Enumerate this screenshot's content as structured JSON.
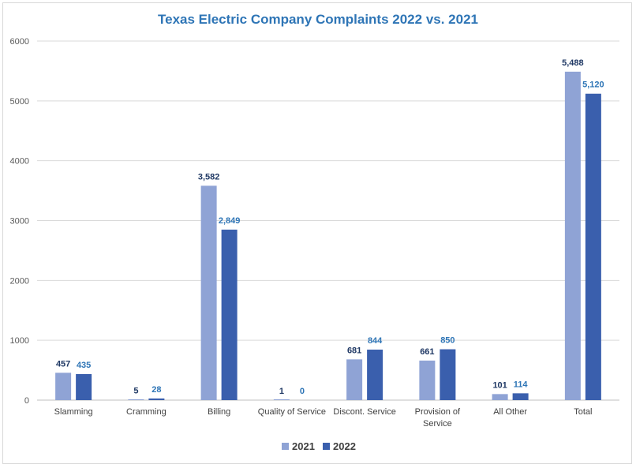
{
  "chart_data": {
    "type": "bar",
    "title": "Texas Electric Company Complaints 2022 vs. 2021",
    "xlabel": "",
    "ylabel": "",
    "ylim": [
      0,
      6000
    ],
    "yticks": [
      0,
      1000,
      2000,
      3000,
      4000,
      5000,
      6000
    ],
    "grid": true,
    "legend_position": "bottom",
    "categories": [
      [
        "Slamming"
      ],
      [
        "Cramming"
      ],
      [
        "Billing"
      ],
      [
        "Quality of Service"
      ],
      [
        "Discont. Service"
      ],
      [
        "Provision of",
        "Service"
      ],
      [
        "All Other"
      ],
      [
        "Total"
      ]
    ],
    "series": [
      {
        "name": "2021",
        "color": "#8fa3d5",
        "label_color": "#1f3864",
        "values": [
          457,
          5,
          3582,
          1,
          681,
          661,
          101,
          5488
        ],
        "labels": [
          "457",
          "5",
          "3,582",
          "1",
          "681",
          "661",
          "101",
          "5,488"
        ]
      },
      {
        "name": "2022",
        "color": "#3a5fad",
        "label_color": "#2e75b6",
        "values": [
          435,
          28,
          2849,
          0,
          844,
          850,
          114,
          5120
        ],
        "labels": [
          "435",
          "28",
          "2,849",
          "0",
          "844",
          "850",
          "114",
          "5,120"
        ]
      }
    ],
    "title_color": "#2e75b6"
  }
}
